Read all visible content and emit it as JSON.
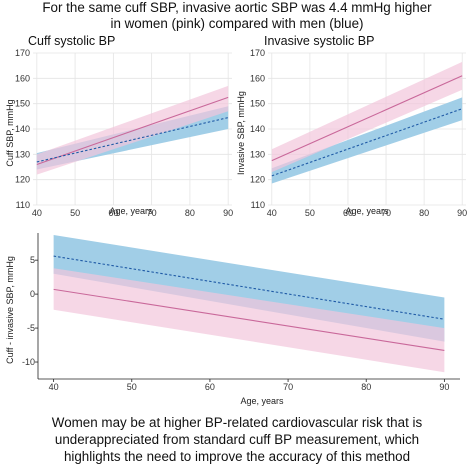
{
  "header": {
    "line1": "For the same cuff SBP, invasive aortic SBP was 4.4 mmHg higher",
    "line2": "in women (pink) compared with men (blue)"
  },
  "footer": {
    "line1": "Women may be at higher BP-related cardiovascular risk that is",
    "line2": "underappreciated from standard cuff BP measurement, which",
    "line3": "highlights the need to improve the accuracy of this method"
  },
  "colors": {
    "women_line": "#c9689a",
    "women_band": "#f2c6dc",
    "men_line": "#1f5aa6",
    "men_band": "#9ccbe6",
    "overlap_band": "#a9a9d2"
  },
  "chart_data": [
    {
      "id": "cuff",
      "type": "line",
      "title": "Cuff systolic BP",
      "xlabel": "Age, years",
      "ylabel": "Cuff SBP, mmHg",
      "xlim": [
        39,
        91
      ],
      "ylim": [
        110,
        170
      ],
      "xticks": [
        40,
        50,
        60,
        70,
        80,
        90
      ],
      "yticks": [
        110,
        120,
        130,
        140,
        150,
        160,
        170
      ],
      "grid": true,
      "series": [
        {
          "key": "women",
          "x": [
            40,
            90
          ],
          "y": [
            126,
            152.5
          ],
          "lower": [
            122,
            147
          ],
          "upper": [
            130,
            157
          ],
          "style": "solid"
        },
        {
          "key": "men",
          "x": [
            40,
            90
          ],
          "y": [
            127,
            144.5
          ],
          "lower": [
            124,
            140
          ],
          "upper": [
            130.5,
            149
          ],
          "style": "dashed"
        }
      ]
    },
    {
      "id": "invasive",
      "type": "line",
      "title": "Invasive systolic BP",
      "xlabel": "Age, years",
      "ylabel": "Invasive SBP, mmHg",
      "xlim": [
        39,
        91
      ],
      "ylim": [
        110,
        170
      ],
      "xticks": [
        40,
        50,
        60,
        70,
        80,
        90
      ],
      "yticks": [
        110,
        120,
        130,
        140,
        150,
        160,
        170
      ],
      "grid": true,
      "series": [
        {
          "key": "women",
          "x": [
            40,
            90
          ],
          "y": [
            127.5,
            161
          ],
          "lower": [
            123,
            155.5
          ],
          "upper": [
            132,
            166.5
          ],
          "style": "solid"
        },
        {
          "key": "men",
          "x": [
            40,
            90
          ],
          "y": [
            121.5,
            148
          ],
          "lower": [
            118.5,
            143.5
          ],
          "upper": [
            124.5,
            152.5
          ],
          "style": "dashed"
        }
      ]
    },
    {
      "id": "difference",
      "type": "line",
      "title": "",
      "xlabel": "Age, years",
      "ylabel": "Cuff - invasive SBP, mmHg",
      "xlim": [
        38,
        92
      ],
      "ylim": [
        -12.5,
        9
      ],
      "xticks": [
        40,
        50,
        60,
        70,
        80,
        90
      ],
      "yticks": [
        -10,
        -5,
        0,
        5
      ],
      "grid": false,
      "series": [
        {
          "key": "women",
          "x": [
            40,
            90
          ],
          "y": [
            0.7,
            -8.3
          ],
          "lower": [
            -2.3,
            -11.5
          ],
          "upper": [
            3.8,
            -5.0
          ],
          "style": "solid"
        },
        {
          "key": "men",
          "x": [
            40,
            90
          ],
          "y": [
            5.6,
            -3.7
          ],
          "lower": [
            3.0,
            -7.0
          ],
          "upper": [
            8.7,
            -0.5
          ],
          "style": "dashed"
        }
      ]
    }
  ]
}
